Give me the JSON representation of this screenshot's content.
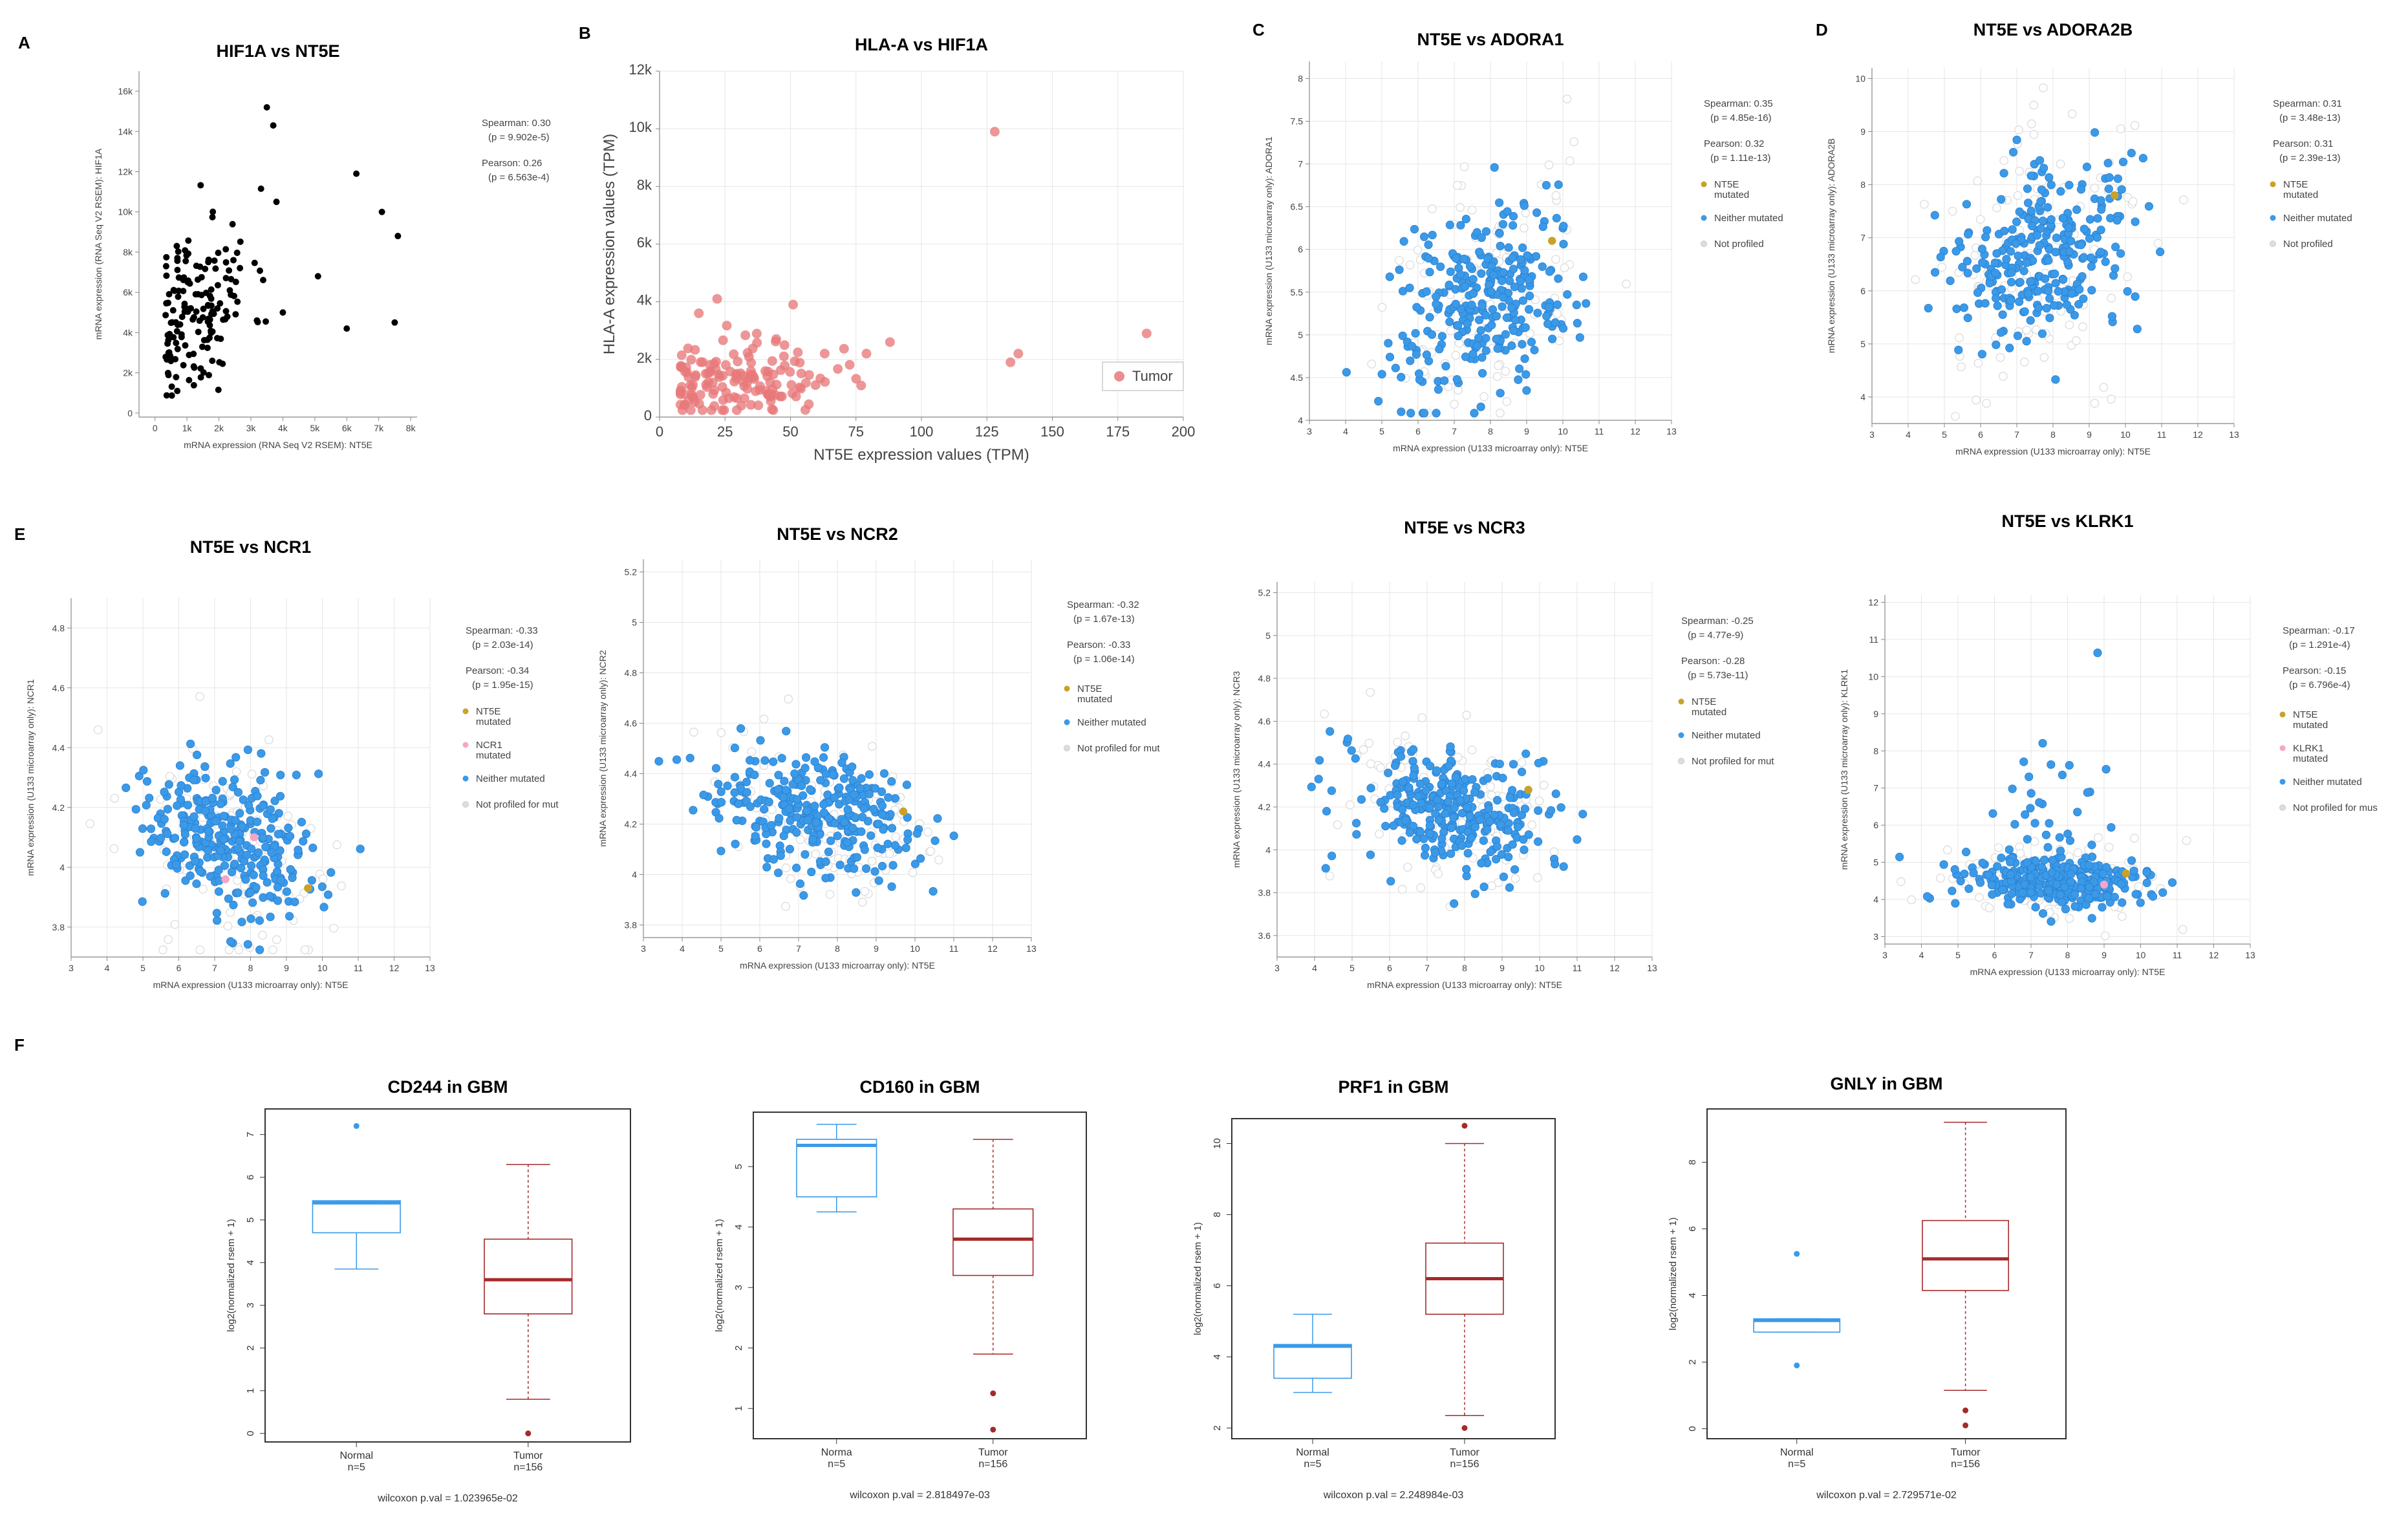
{
  "chart_data": [
    {
      "id": "A",
      "type": "scatter",
      "panel_label": "A",
      "title": "HIF1A vs NT5E",
      "xlabel": "mRNA expression (RNA Seq V2 RSEM): NT5E",
      "ylabel": "mRNA expression (RNA Seq V2 RSEM): HIF1A",
      "xlim": [
        -500,
        8200
      ],
      "ylim": [
        -200,
        17000
      ],
      "xticks": [
        0,
        1000,
        2000,
        3000,
        4000,
        5000,
        6000,
        7000,
        8000
      ],
      "xtick_labels": [
        "0",
        "1k",
        "2k",
        "3k",
        "4k",
        "5k",
        "6k",
        "7k",
        "8k"
      ],
      "yticks": [
        0,
        2000,
        4000,
        6000,
        8000,
        10000,
        12000,
        14000,
        16000
      ],
      "ytick_labels": [
        "0",
        "2k",
        "4k",
        "6k",
        "8k",
        "10k",
        "12k",
        "14k",
        "16k"
      ],
      "grid": false,
      "annotations": [
        "Spearman: 0.30",
        "(p = 9.902e-5)",
        "Pearson: 0.26",
        "(p = 6.563e-4)"
      ],
      "color": "#000000",
      "seed": 11,
      "n_points": 160,
      "x_center": 1300,
      "x_spread": 900,
      "y_center": 5200,
      "y_spread": 2300,
      "corr": 0.3,
      "outliers": [
        [
          3500,
          15200
        ],
        [
          3700,
          14300
        ],
        [
          6300,
          11900
        ],
        [
          7100,
          10000
        ],
        [
          7600,
          8800
        ],
        [
          7500,
          4500
        ],
        [
          6000,
          4200
        ],
        [
          5100,
          6800
        ],
        [
          4000,
          5000
        ],
        [
          3800,
          10500
        ]
      ]
    },
    {
      "id": "B",
      "type": "scatter",
      "panel_label": "B",
      "title": "HLA-A vs HIF1A",
      "xlabel": "NT5E expression values (TPM)",
      "ylabel": "HLA-A expression values (TPM)",
      "xlim": [
        0,
        200
      ],
      "ylim": [
        0,
        12000
      ],
      "xticks": [
        0,
        25,
        50,
        75,
        100,
        125,
        150,
        175,
        200
      ],
      "xtick_labels": [
        "0",
        "25",
        "50",
        "75",
        "100",
        "125",
        "150",
        "175",
        "200"
      ],
      "yticks": [
        0,
        2000,
        4000,
        6000,
        8000,
        10000,
        12000
      ],
      "ytick_labels": [
        "0",
        "2k",
        "4k",
        "6k",
        "8k",
        "10k",
        "12k"
      ],
      "grid": true,
      "legend": [
        {
          "label": "Tumor",
          "color": "#e8797a"
        }
      ],
      "color": "#e8797a",
      "seed": 23,
      "n_points": 150,
      "x_center": 28,
      "x_spread": 20,
      "y_center": 1200,
      "y_spread": 650,
      "corr": 0.15,
      "outliers": [
        [
          128,
          9900
        ],
        [
          186,
          2900
        ],
        [
          137,
          2200
        ],
        [
          134,
          1900
        ],
        [
          79,
          2200
        ],
        [
          88,
          2600
        ],
        [
          51,
          3900
        ],
        [
          22,
          4100
        ],
        [
          15,
          3600
        ]
      ]
    },
    {
      "id": "C",
      "type": "scatter",
      "panel_label": "C",
      "title": "NT5E vs ADORA1",
      "xlabel": "mRNA expression (U133 microarray only): NT5E",
      "ylabel": "mRNA expression (U133 microarray only): ADORA1",
      "xlim": [
        3,
        13
      ],
      "ylim": [
        4,
        8.2
      ],
      "xticks": [
        3,
        4,
        5,
        6,
        7,
        8,
        9,
        10,
        11,
        12,
        13
      ],
      "yticks": [
        4,
        4.5,
        5,
        5.5,
        6,
        6.5,
        7,
        7.5,
        8
      ],
      "grid": true,
      "annotations": [
        "Spearman: 0.35",
        "(p = 4.85e-16)",
        "Pearson: 0.32",
        "(p = 1.11e-13)"
      ],
      "legend": [
        {
          "label": "NT5E",
          "label2": "mutated",
          "color": "#c9a227"
        },
        {
          "label": "Neither mutated",
          "color": "#3a9ae8"
        },
        {
          "label": "Not profiled",
          "color": "#dddddd"
        }
      ],
      "color": "#3a9ae8",
      "seed": 31,
      "n_points": 280,
      "n_gray": 110,
      "x_center": 7.8,
      "x_spread": 1.25,
      "y_center": 5.4,
      "y_spread": 0.55,
      "corr": 0.35,
      "special": [
        {
          "x": 9.7,
          "y": 6.1,
          "color": "#c9a227"
        }
      ]
    },
    {
      "id": "D",
      "type": "scatter",
      "panel_label": "D",
      "title": "NT5E vs ADORA2B",
      "xlabel": "mRNA expression (U133 microarray only): NT5E",
      "ylabel": "mRNA expression (U133 microarray only): ADORA2B",
      "xlim": [
        3,
        13
      ],
      "ylim": [
        3.5,
        10.2
      ],
      "xticks": [
        3,
        4,
        5,
        6,
        7,
        8,
        9,
        10,
        11,
        12,
        13
      ],
      "yticks": [
        4,
        5,
        6,
        7,
        8,
        9,
        10
      ],
      "grid": true,
      "annotations": [
        "Spearman: 0.31",
        "(p = 3.48e-13)",
        "Pearson: 0.31",
        "(p = 2.39e-13)"
      ],
      "legend": [
        {
          "label": "NT5E",
          "label2": "mutated",
          "color": "#c9a227"
        },
        {
          "label": "Neither mutated",
          "color": "#3a9ae8"
        },
        {
          "label": "Not profiled",
          "color": "#dddddd"
        }
      ],
      "color": "#3a9ae8",
      "seed": 41,
      "n_points": 280,
      "n_gray": 110,
      "x_center": 7.7,
      "x_spread": 1.3,
      "y_center": 6.7,
      "y_spread": 0.9,
      "corr": 0.31,
      "special": [
        {
          "x": 9.7,
          "y": 7.8,
          "color": "#c9a227"
        }
      ]
    },
    {
      "id": "E1",
      "type": "scatter",
      "panel_label": "E",
      "title": "NT5E vs NCR1",
      "xlabel": "mRNA expression (U133 microarray only): NT5E",
      "ylabel": "mRNA expression (U133 microarray only): NCR1",
      "xlim": [
        3,
        13
      ],
      "ylim": [
        3.7,
        4.9
      ],
      "xticks": [
        3,
        4,
        5,
        6,
        7,
        8,
        9,
        10,
        11,
        12,
        13
      ],
      "yticks": [
        3.8,
        4,
        4.2,
        4.4,
        4.6,
        4.8
      ],
      "grid": true,
      "annotations": [
        "Spearman: -0.33",
        "(p = 2.03e-14)",
        "Pearson: -0.34",
        "(p = 1.95e-15)"
      ],
      "legend": [
        {
          "label": "NT5E",
          "label2": "mutated",
          "color": "#c9a227"
        },
        {
          "label": "NCR1",
          "label2": "mutated",
          "color": "#f3a6c8"
        },
        {
          "label": "Neither mutated",
          "color": "#3a9ae8"
        },
        {
          "label": "Not profiled for mut",
          "color": "#dddddd"
        }
      ],
      "color": "#3a9ae8",
      "seed": 53,
      "n_points": 300,
      "n_gray": 120,
      "x_center": 7.5,
      "x_spread": 1.3,
      "y_center": 4.07,
      "y_spread": 0.13,
      "corr": -0.33,
      "special": [
        {
          "x": 9.6,
          "y": 3.93,
          "color": "#c9a227"
        },
        {
          "x": 8.1,
          "y": 4.1,
          "color": "#f3a6c8"
        },
        {
          "x": 7.3,
          "y": 3.96,
          "color": "#f3a6c8"
        }
      ]
    },
    {
      "id": "E2",
      "type": "scatter",
      "panel_label": "",
      "title": "NT5E vs NCR2",
      "xlabel": "mRNA expression (U133 microarray only): NT5E",
      "ylabel": "mRNA expression (U133 microarray only): NCR2",
      "xlim": [
        3,
        13
      ],
      "ylim": [
        3.75,
        5.25
      ],
      "xticks": [
        3,
        4,
        5,
        6,
        7,
        8,
        9,
        10,
        11,
        12,
        13
      ],
      "yticks": [
        3.8,
        4,
        4.2,
        4.4,
        4.6,
        4.8,
        5,
        5.2
      ],
      "grid": true,
      "annotations": [
        "Spearman: -0.32",
        "(p = 1.67e-13)",
        "Pearson: -0.33",
        "(p = 1.06e-14)"
      ],
      "legend": [
        {
          "label": "NT5E",
          "label2": "mutated",
          "color": "#c9a227"
        },
        {
          "label": "Neither mutated",
          "color": "#3a9ae8"
        },
        {
          "label": "Not profiled for mut",
          "color": "#dddddd"
        }
      ],
      "color": "#3a9ae8",
      "seed": 61,
      "n_points": 300,
      "n_gray": 120,
      "x_center": 7.6,
      "x_spread": 1.3,
      "y_center": 4.24,
      "y_spread": 0.12,
      "corr": -0.32,
      "special": [
        {
          "x": 9.7,
          "y": 4.25,
          "color": "#c9a227"
        }
      ]
    },
    {
      "id": "E3",
      "type": "scatter",
      "panel_label": "",
      "title": "NT5E vs NCR3",
      "xlabel": "mRNA expression (U133 microarray only): NT5E",
      "ylabel": "mRNA expression (U133 microarray only): NCR3",
      "xlim": [
        3,
        13
      ],
      "ylim": [
        3.5,
        5.25
      ],
      "xticks": [
        3,
        4,
        5,
        6,
        7,
        8,
        9,
        10,
        11,
        12,
        13
      ],
      "yticks": [
        3.6,
        3.8,
        4,
        4.2,
        4.4,
        4.6,
        4.8,
        5,
        5.2
      ],
      "grid": true,
      "annotations": [
        "Spearman: -0.25",
        "(p = 4.77e-9)",
        "Pearson: -0.28",
        "(p = 5.73e-11)"
      ],
      "legend": [
        {
          "label": "NT5E",
          "label2": "mutated",
          "color": "#c9a227"
        },
        {
          "label": "Neither mutated",
          "color": "#3a9ae8"
        },
        {
          "label": "Not profiled for mut",
          "color": "#dddddd"
        }
      ],
      "color": "#3a9ae8",
      "seed": 71,
      "n_points": 300,
      "n_gray": 120,
      "x_center": 7.6,
      "x_spread": 1.3,
      "y_center": 4.18,
      "y_spread": 0.14,
      "corr": -0.26,
      "special": [
        {
          "x": 9.7,
          "y": 4.28,
          "color": "#c9a227"
        }
      ]
    },
    {
      "id": "E4",
      "type": "scatter",
      "panel_label": "",
      "title": "NT5E vs KLRK1",
      "xlabel": "mRNA expression (U133 microarray only): NT5E",
      "ylabel": "mRNA expression (U133 microarray only): KLRK1",
      "xlim": [
        3,
        13
      ],
      "ylim": [
        2.8,
        12.2
      ],
      "xticks": [
        3,
        4,
        5,
        6,
        7,
        8,
        9,
        10,
        11,
        12,
        13
      ],
      "yticks": [
        3,
        4,
        5,
        6,
        7,
        8,
        9,
        10,
        11,
        12
      ],
      "grid": true,
      "annotations": [
        "Spearman: -0.17",
        "(p = 1.291e-4)",
        "Pearson: -0.15",
        "(p = 6.796e-4)"
      ],
      "legend": [
        {
          "label": "NT5E",
          "label2": "mutated",
          "color": "#c9a227"
        },
        {
          "label": "KLRK1",
          "label2": "mutated",
          "color": "#f3a6c8"
        },
        {
          "label": "Neither mutated",
          "color": "#3a9ae8"
        },
        {
          "label": "Not profiled for mus",
          "color": "#dddddd"
        }
      ],
      "color": "#3a9ae8",
      "seed": 83,
      "n_points": 300,
      "n_gray": 120,
      "x_center": 7.6,
      "x_spread": 1.3,
      "y_center": 4.5,
      "y_spread": 0.35,
      "corr": -0.17,
      "special": [
        {
          "x": 9.6,
          "y": 4.7,
          "color": "#c9a227"
        },
        {
          "x": 9.0,
          "y": 4.4,
          "color": "#f3a6c8"
        }
      ],
      "extra_high": 30
    },
    {
      "id": "F1",
      "type": "box",
      "panel_label": "F",
      "title": "CD244 in GBM",
      "ylabel": "log2(normalized rsem + 1)",
      "ylim": [
        -0.2,
        7.6
      ],
      "yticks": [
        0,
        1,
        2,
        3,
        4,
        5,
        6,
        7
      ],
      "groups": [
        {
          "name": "Normal",
          "n": "n=5",
          "min": 3.85,
          "q1": 4.7,
          "median": 5.4,
          "q3": 5.45,
          "max": 5.45,
          "outliers": [
            7.2
          ],
          "color": "#3a9ae8"
        },
        {
          "name": "Tumor",
          "n": "n=156",
          "min": 0.8,
          "q1": 2.8,
          "median": 3.6,
          "q3": 4.55,
          "max": 6.3,
          "outliers": [
            0
          ],
          "color": "#a52a2a"
        }
      ],
      "pval": "wilcoxon p.val = 1.023965e-02"
    },
    {
      "id": "F2",
      "type": "box",
      "panel_label": "",
      "title": "CD160 in GBM",
      "ylabel": "log2(normalized rsem + 1)",
      "ylim": [
        0.5,
        5.9
      ],
      "yticks": [
        1,
        2,
        3,
        4,
        5
      ],
      "groups": [
        {
          "name": "Norma",
          "n": "n=5",
          "min": 4.25,
          "q1": 4.5,
          "median": 5.35,
          "q3": 5.45,
          "max": 5.7,
          "outliers": [],
          "color": "#3a9ae8"
        },
        {
          "name": "Tumor",
          "n": "n=156",
          "min": 1.9,
          "q1": 3.2,
          "median": 3.8,
          "q3": 4.3,
          "max": 5.45,
          "outliers": [
            1.25,
            0.65
          ],
          "color": "#a52a2a"
        }
      ],
      "pval": "wilcoxon p.val = 2.818497e-03"
    },
    {
      "id": "F3",
      "type": "box",
      "panel_label": "",
      "title": "PRF1 in GBM",
      "ylabel": "log2(normalized rsem + 1)",
      "ylim": [
        1.7,
        10.7
      ],
      "yticks": [
        2,
        4,
        6,
        8,
        10
      ],
      "groups": [
        {
          "name": "Normal",
          "n": "n=5",
          "min": 3.0,
          "q1": 3.4,
          "median": 4.3,
          "q3": 4.35,
          "max": 5.2,
          "outliers": [],
          "color": "#3a9ae8"
        },
        {
          "name": "Tumor",
          "n": "n=156",
          "min": 2.35,
          "q1": 5.2,
          "median": 6.2,
          "q3": 7.2,
          "max": 10.0,
          "outliers": [
            10.5,
            2.0
          ],
          "color": "#a52a2a"
        }
      ],
      "pval": "wilcoxon p.val = 2.248984e-03"
    },
    {
      "id": "F4",
      "type": "box",
      "panel_label": "",
      "title": "GNLY in GBM",
      "ylabel": "log2(normalized rsem + 1)",
      "ylim": [
        -0.3,
        9.6
      ],
      "yticks": [
        0,
        2,
        4,
        6,
        8
      ],
      "groups": [
        {
          "name": "Normal",
          "n": "n=5",
          "min": 2.9,
          "q1": 2.9,
          "median": 3.25,
          "q3": 3.3,
          "max": 3.3,
          "outliers": [
            5.25,
            1.9
          ],
          "color": "#3a9ae8"
        },
        {
          "name": "Tumor",
          "n": "n=156",
          "min": 1.15,
          "q1": 4.15,
          "median": 5.1,
          "q3": 6.25,
          "max": 9.2,
          "outliers": [
            0.55,
            0.1
          ],
          "color": "#a52a2a"
        }
      ],
      "pval": "wilcoxon p.val = 2.729571e-02"
    }
  ]
}
